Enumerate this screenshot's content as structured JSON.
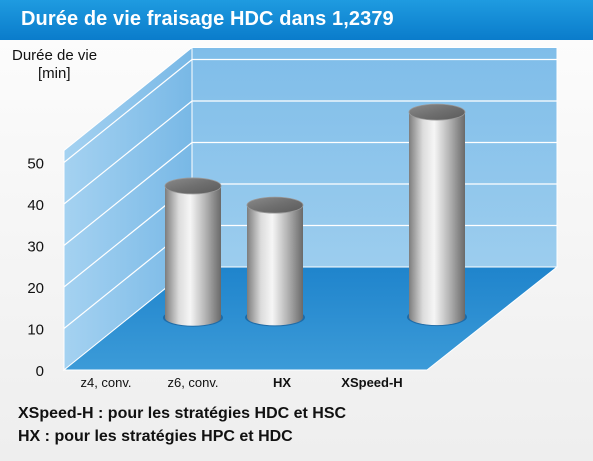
{
  "title": "Durée de vie fraisage HDC dans 1,2379",
  "ylabel_line1": "Durée de vie",
  "ylabel_line2": "[min]",
  "notes": [
    "XSpeed-H : pour les stratégies HDC et HSC",
    "HX : pour les stratégies HPC et HDC"
  ],
  "colors": {
    "title_bar": "#0f88d4",
    "back_wall": "#89c3ea",
    "side_wall": "#6fb4e6",
    "floor": "#2d8fd0",
    "cylinder": "#b3b3b3"
  },
  "chart_data": {
    "type": "bar",
    "style": "3d-cylinder",
    "categories": [
      "z4, conv.",
      "z6, conv.",
      "HX",
      "XSpeed-H"
    ],
    "values": [
      0,
      27,
      23,
      42
    ],
    "ylim": [
      0,
      50
    ],
    "yticks": [
      "0",
      "10",
      "20",
      "30",
      "40",
      "50"
    ],
    "xlabel": "",
    "ylabel": "Durée de vie [min]",
    "grid": true
  }
}
